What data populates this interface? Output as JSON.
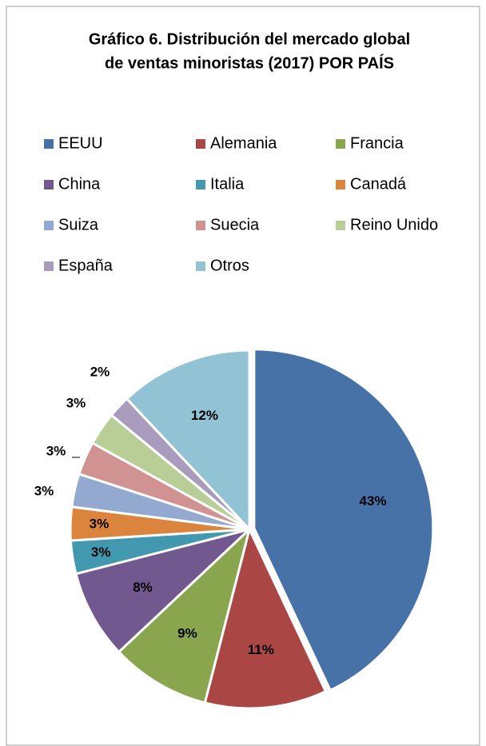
{
  "chart_data": {
    "type": "pie",
    "title": [
      "Gráfico 6. Distribución del mercado global",
      "de ventas minoristas (2017) POR PAÍS"
    ],
    "categories": [
      "EEUU",
      "Alemania",
      "Francia",
      "China",
      "Italia",
      "Canadá",
      "Suiza",
      "Suecia",
      "Reino Unido",
      "España",
      "Otros"
    ],
    "values": [
      43,
      11,
      9,
      8,
      3,
      3,
      3,
      3,
      3,
      2,
      12
    ],
    "value_labels": [
      "43%",
      "11%",
      "9%",
      "8%",
      "3%",
      "3%",
      "3%",
      "3%",
      "3%",
      "2%",
      "12%"
    ],
    "colors": [
      "#4672a8",
      "#aa4644",
      "#89a54e",
      "#71588f",
      "#4198af",
      "#db843d",
      "#93a9cf",
      "#d19392",
      "#b9cd96",
      "#a99bbd",
      "#92c3d4"
    ],
    "legend": "top"
  }
}
